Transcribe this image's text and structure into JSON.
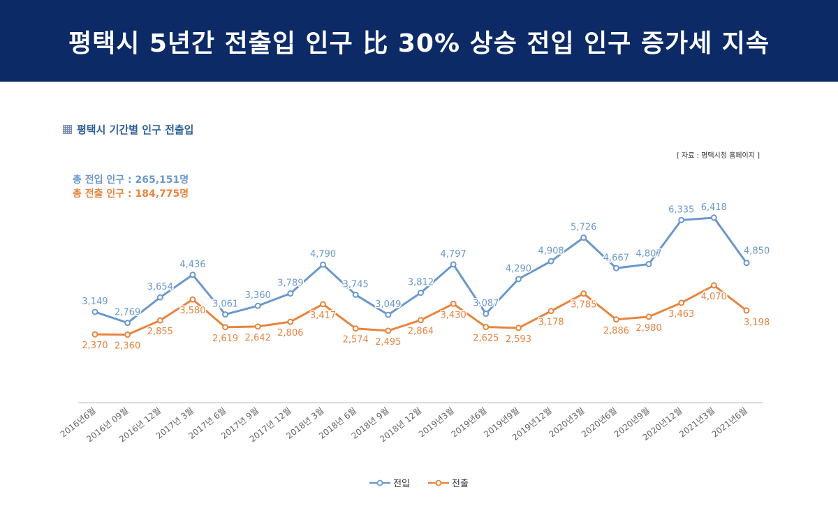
{
  "header": {
    "title": "평택시 5년간 전출입 인구 比 30% 상승 전입 인구 증가세 지속"
  },
  "chart_title": "평택시 기간별 인구 전출입",
  "source": "[ 자료 : 평택시청 홈페이지 ]",
  "totals": {
    "in": "총 전입 인구 : 265,151명",
    "out": "총 전출 인구 : 184,775명"
  },
  "colors": {
    "banner": "#0b2a66",
    "in": "#6b98cc",
    "out": "#e8843f"
  },
  "chart_data": {
    "type": "line",
    "title": "평택시 기간별 인구 전출입",
    "categories": [
      "2016년6월",
      "2016년 09월",
      "2016년 12월",
      "2017년 3월",
      "2017년 6월",
      "2017년 9월",
      "2017년 12월",
      "2018년 3월",
      "2018년 6월",
      "2018년 9월",
      "2018년 12월",
      "2019년3월",
      "2019년6월",
      "2019년9월",
      "2019년12월",
      "2020년3월",
      "2020년6월",
      "2020년9월",
      "2020년12월",
      "2021년3월",
      "2021년6월"
    ],
    "series": [
      {
        "name": "전입",
        "color": "#6b98cc",
        "values": [
          3149,
          2769,
          3654,
          4436,
          3061,
          3360,
          3789,
          4790,
          3745,
          3049,
          3812,
          4797,
          3087,
          4290,
          4908,
          5726,
          4667,
          4807,
          6335,
          6418,
          4850
        ],
        "labels": [
          "3,149",
          "2,769",
          "3,654",
          "4,436",
          "3,061",
          "3,360",
          "3,789",
          "4,790",
          "3,745",
          "3,049",
          "3,812",
          "4,797",
          "3,087",
          "4,290",
          "4,908",
          "5,726",
          "4,667",
          "4,807",
          "6,335",
          "6,418",
          "4,850"
        ]
      },
      {
        "name": "전출",
        "color": "#e8843f",
        "values": [
          2370,
          2360,
          2855,
          3580,
          2619,
          2642,
          2806,
          3417,
          2574,
          2495,
          2864,
          3430,
          2625,
          2593,
          3178,
          3785,
          2886,
          2980,
          3463,
          4070,
          3198
        ],
        "labels": [
          "2,370",
          "2,360",
          "2,855",
          "3,580",
          "2,619",
          "2,642",
          "2,806",
          "3,417",
          "2,574",
          "2,495",
          "2,864",
          "3,430",
          "2,625",
          "2,593",
          "3,178",
          "3,785",
          "2,886",
          "2,980",
          "3,463",
          "4,070",
          "3,198"
        ]
      }
    ],
    "ylim": [
      0,
      7000
    ],
    "grid": false,
    "xlabel": "",
    "ylabel": "",
    "legend_position": "bottom-center"
  }
}
